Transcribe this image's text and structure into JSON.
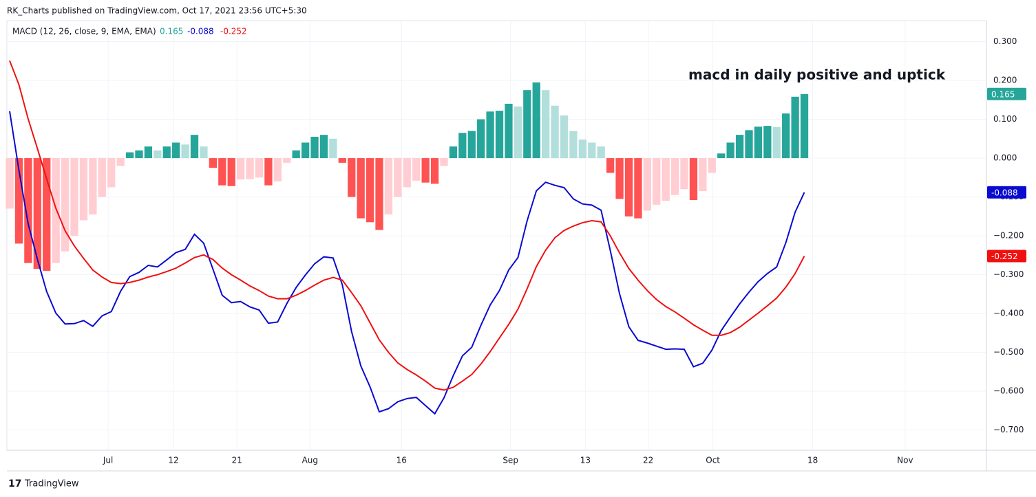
{
  "header": {
    "title": "RK_Charts published on TradingView.com, Oct 17, 2021 23:56 UTC+5:30"
  },
  "footer": {
    "brand": "TradingView"
  },
  "chart_data": {
    "type": "combo",
    "title": "MACD (12, 26, close, 9, EMA, EMA)",
    "annotation": "macd in daily positive and uptick",
    "x": [
      0,
      1,
      2,
      3,
      4,
      5,
      6,
      7,
      8,
      9,
      10,
      11,
      12,
      13,
      14,
      15,
      16,
      17,
      18,
      19,
      20,
      21,
      22,
      23,
      24,
      25,
      26,
      27,
      28,
      29,
      30,
      31,
      32,
      33,
      34,
      35,
      36,
      37,
      38,
      39,
      40,
      41,
      42,
      43,
      44,
      45,
      46,
      47,
      48,
      49,
      50,
      51,
      52,
      53,
      54,
      55,
      56,
      57,
      58,
      59,
      60,
      61,
      62,
      63,
      64,
      65,
      66,
      67,
      68,
      69,
      70,
      71,
      72,
      73,
      74,
      75,
      76,
      77,
      78,
      79,
      80,
      81,
      82,
      83,
      84,
      85,
      86
    ],
    "xlim": [
      -0.3,
      105.7
    ],
    "xticks": [
      {
        "value": 10.66,
        "label": "Jul"
      },
      {
        "value": 17.73,
        "label": "12"
      },
      {
        "value": 24.6,
        "label": "21"
      },
      {
        "value": 32.5,
        "label": "Aug"
      },
      {
        "value": 42.4,
        "label": "16"
      },
      {
        "value": 54.2,
        "label": "Sep"
      },
      {
        "value": 62.3,
        "label": "13"
      },
      {
        "value": 69.1,
        "label": "22"
      },
      {
        "value": 76.1,
        "label": "Oct"
      },
      {
        "value": 86.9,
        "label": "18"
      },
      {
        "value": 96.9,
        "label": "Nov"
      }
    ],
    "ylim": [
      0.354,
      -0.752
    ],
    "yticks": [
      {
        "value": 0.3,
        "label": "0.300"
      },
      {
        "value": 0.2,
        "label": "0.200"
      },
      {
        "value": 0.1,
        "label": "0.100"
      },
      {
        "value": 0,
        "label": "0.000"
      },
      {
        "value": -0.1,
        "label": "−0.100"
      },
      {
        "value": -0.2,
        "label": "−0.200"
      },
      {
        "value": -0.3,
        "label": "−0.300"
      },
      {
        "value": -0.4,
        "label": "−0.400"
      },
      {
        "value": -0.5,
        "label": "−0.500"
      },
      {
        "value": -0.6,
        "label": "−0.600"
      },
      {
        "value": -0.7,
        "label": "−0.700"
      }
    ],
    "grid": true,
    "series": [
      {
        "type": "bar",
        "colors": {
          "grow_above": "#26a69a",
          "fall_above": "#b2dfdb",
          "grow_below": "#ffcdd2",
          "fall_below": "#ff5252"
        },
        "values": [
          -0.13,
          -0.22,
          -0.27,
          -0.285,
          -0.29,
          -0.27,
          -0.24,
          -0.2,
          -0.16,
          -0.145,
          -0.1,
          -0.075,
          -0.02,
          0.015,
          0.02,
          0.03,
          0.02,
          0.03,
          0.04,
          0.035,
          0.06,
          0.03,
          -0.025,
          -0.07,
          -0.072,
          -0.055,
          -0.054,
          -0.05,
          -0.07,
          -0.06,
          -0.012,
          0.02,
          0.04,
          0.055,
          0.06,
          0.05,
          -0.012,
          -0.1,
          -0.155,
          -0.165,
          -0.185,
          -0.145,
          -0.1,
          -0.075,
          -0.058,
          -0.063,
          -0.066,
          -0.02,
          0.03,
          0.065,
          0.07,
          0.1,
          0.12,
          0.122,
          0.14,
          0.133,
          0.175,
          0.195,
          0.175,
          0.135,
          0.11,
          0.07,
          0.048,
          0.04,
          0.03,
          -0.038,
          -0.105,
          -0.15,
          -0.155,
          -0.135,
          -0.12,
          -0.11,
          -0.095,
          -0.08,
          -0.108,
          -0.085,
          -0.038,
          0.012,
          0.04,
          0.06,
          0.072,
          0.081,
          0.083,
          0.08,
          0.115,
          0.158,
          0.165
        ]
      },
      {
        "type": "line",
        "color": "#0a0ad0",
        "values": [
          0.121,
          -0.031,
          -0.169,
          -0.26,
          -0.343,
          -0.399,
          -0.427,
          -0.426,
          -0.418,
          -0.433,
          -0.406,
          -0.395,
          -0.343,
          -0.305,
          -0.294,
          -0.276,
          -0.28,
          -0.262,
          -0.243,
          -0.235,
          -0.196,
          -0.219,
          -0.286,
          -0.353,
          -0.372,
          -0.369,
          -0.383,
          -0.391,
          -0.425,
          -0.422,
          -0.374,
          -0.333,
          -0.301,
          -0.272,
          -0.254,
          -0.257,
          -0.326,
          -0.446,
          -0.535,
          -0.589,
          -0.653,
          -0.645,
          -0.627,
          -0.619,
          -0.616,
          -0.637,
          -0.658,
          -0.617,
          -0.56,
          -0.509,
          -0.487,
          -0.43,
          -0.378,
          -0.341,
          -0.288,
          -0.256,
          -0.161,
          -0.084,
          -0.062,
          -0.07,
          -0.076,
          -0.105,
          -0.118,
          -0.121,
          -0.134,
          -0.238,
          -0.349,
          -0.434,
          -0.469,
          -0.476,
          -0.484,
          -0.492,
          -0.491,
          -0.492,
          -0.537,
          -0.528,
          -0.494,
          -0.444,
          -0.409,
          -0.375,
          -0.345,
          -0.318,
          -0.297,
          -0.28,
          -0.217,
          -0.139,
          -0.088
        ]
      },
      {
        "type": "line",
        "color": "#f01010",
        "values": [
          0.251,
          0.189,
          0.101,
          0.025,
          -0.053,
          -0.129,
          -0.187,
          -0.226,
          -0.258,
          -0.288,
          -0.306,
          -0.32,
          -0.323,
          -0.32,
          -0.314,
          -0.306,
          -0.3,
          -0.292,
          -0.283,
          -0.27,
          -0.256,
          -0.249,
          -0.261,
          -0.283,
          -0.3,
          -0.314,
          -0.329,
          -0.341,
          -0.355,
          -0.362,
          -0.362,
          -0.353,
          -0.341,
          -0.327,
          -0.314,
          -0.307,
          -0.314,
          -0.346,
          -0.38,
          -0.424,
          -0.468,
          -0.5,
          -0.527,
          -0.544,
          -0.558,
          -0.574,
          -0.592,
          -0.597,
          -0.59,
          -0.574,
          -0.557,
          -0.53,
          -0.498,
          -0.463,
          -0.428,
          -0.389,
          -0.336,
          -0.279,
          -0.237,
          -0.205,
          -0.186,
          -0.175,
          -0.166,
          -0.161,
          -0.164,
          -0.2,
          -0.244,
          -0.284,
          -0.314,
          -0.341,
          -0.364,
          -0.382,
          -0.396,
          -0.412,
          -0.429,
          -0.443,
          -0.456,
          -0.456,
          -0.449,
          -0.435,
          -0.417,
          -0.399,
          -0.38,
          -0.36,
          -0.332,
          -0.297,
          -0.252
        ]
      }
    ]
  }
}
